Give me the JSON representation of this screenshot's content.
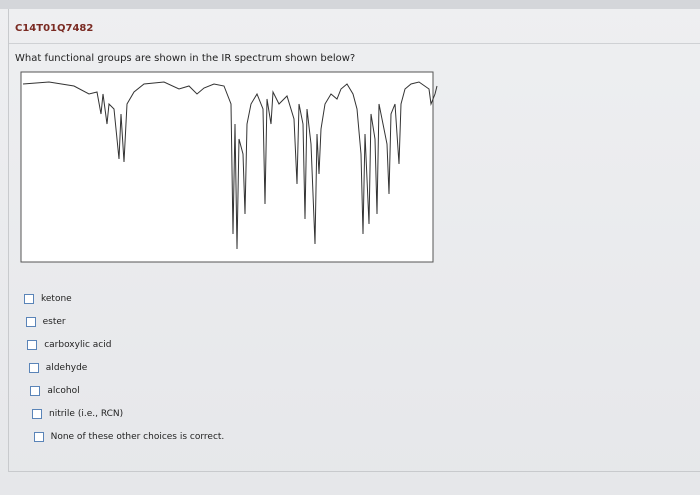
{
  "header": {
    "id": "C14T01Q7482"
  },
  "question": {
    "text": "What functional groups are shown in the IR spectrum shown below?"
  },
  "options": [
    "ketone",
    "ester",
    "carboxylic acid",
    "aldehyde",
    "alcohol",
    "nitrile (i.e., RCN)",
    "None of these other choices is correct."
  ]
}
